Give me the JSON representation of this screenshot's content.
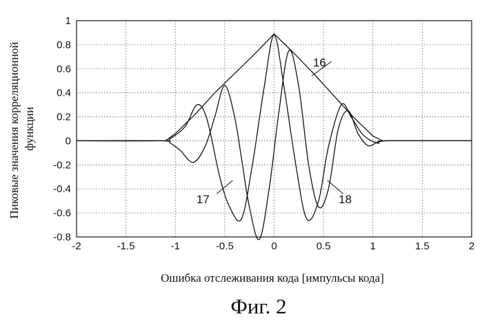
{
  "chart_data": {
    "type": "line",
    "title": "",
    "xlabel": "Ошибка отслеживания кода [импульсы кода]",
    "ylabel_lines": [
      "Пиковые значения корреляционной",
      "функции"
    ],
    "xlim": [
      -2,
      2
    ],
    "ylim": [
      -0.8,
      1
    ],
    "xticks": [
      "-2",
      "-1.5",
      "-1",
      "-0.5",
      "0",
      "0.5",
      "1",
      "1.5",
      "2"
    ],
    "yticks": [
      "1",
      "0.8",
      "0.6",
      "0.4",
      "0.2",
      "0",
      "-0.2",
      "-0.4",
      "-0.6",
      "-0.8"
    ],
    "grid": true,
    "series": [
      {
        "name": "16",
        "x": [
          -2,
          -1.1,
          -1,
          -0.8,
          -0.6,
          -0.4,
          -0.2,
          0,
          0.2,
          0.4,
          0.6,
          0.8,
          1,
          1.1,
          2
        ],
        "y": [
          0,
          0,
          0.06,
          0.22,
          0.4,
          0.56,
          0.72,
          0.89,
          0.73,
          0.56,
          0.38,
          0.2,
          0.04,
          0,
          0
        ]
      },
      {
        "name": "17",
        "x": [
          -2,
          -1.15,
          -1.05,
          -0.95,
          -0.82,
          -0.7,
          -0.6,
          -0.5,
          -0.4,
          -0.32,
          -0.25,
          -0.15,
          -0.05,
          0.05,
          0.15,
          0.25,
          0.35,
          0.45,
          0.55,
          0.65,
          0.75,
          0.85,
          0.95,
          1.05,
          1.15,
          2
        ],
        "y": [
          0,
          0,
          -0.02,
          -0.08,
          -0.18,
          -0.05,
          0.2,
          0.46,
          0.2,
          -0.2,
          -0.55,
          -0.82,
          -0.4,
          0.25,
          0.75,
          0.45,
          -0.2,
          -0.55,
          -0.4,
          0.1,
          0.25,
          0.06,
          -0.04,
          -0.01,
          0,
          0
        ]
      },
      {
        "name": "18",
        "x": [
          -2,
          -1.15,
          -1.05,
          -0.9,
          -0.78,
          -0.68,
          -0.55,
          -0.45,
          -0.33,
          -0.22,
          -0.1,
          0,
          0.1,
          0.22,
          0.33,
          0.45,
          0.55,
          0.68,
          0.78,
          0.9,
          1.05,
          1.15,
          2
        ],
        "y": [
          0,
          0,
          0.02,
          0.12,
          0.3,
          0.18,
          -0.3,
          -0.55,
          -0.65,
          -0.2,
          0.45,
          0.88,
          0.45,
          -0.2,
          -0.65,
          -0.5,
          -0.05,
          0.3,
          0.2,
          0.05,
          -0.02,
          0,
          0
        ]
      }
    ]
  },
  "caption": "Фиг. 2"
}
